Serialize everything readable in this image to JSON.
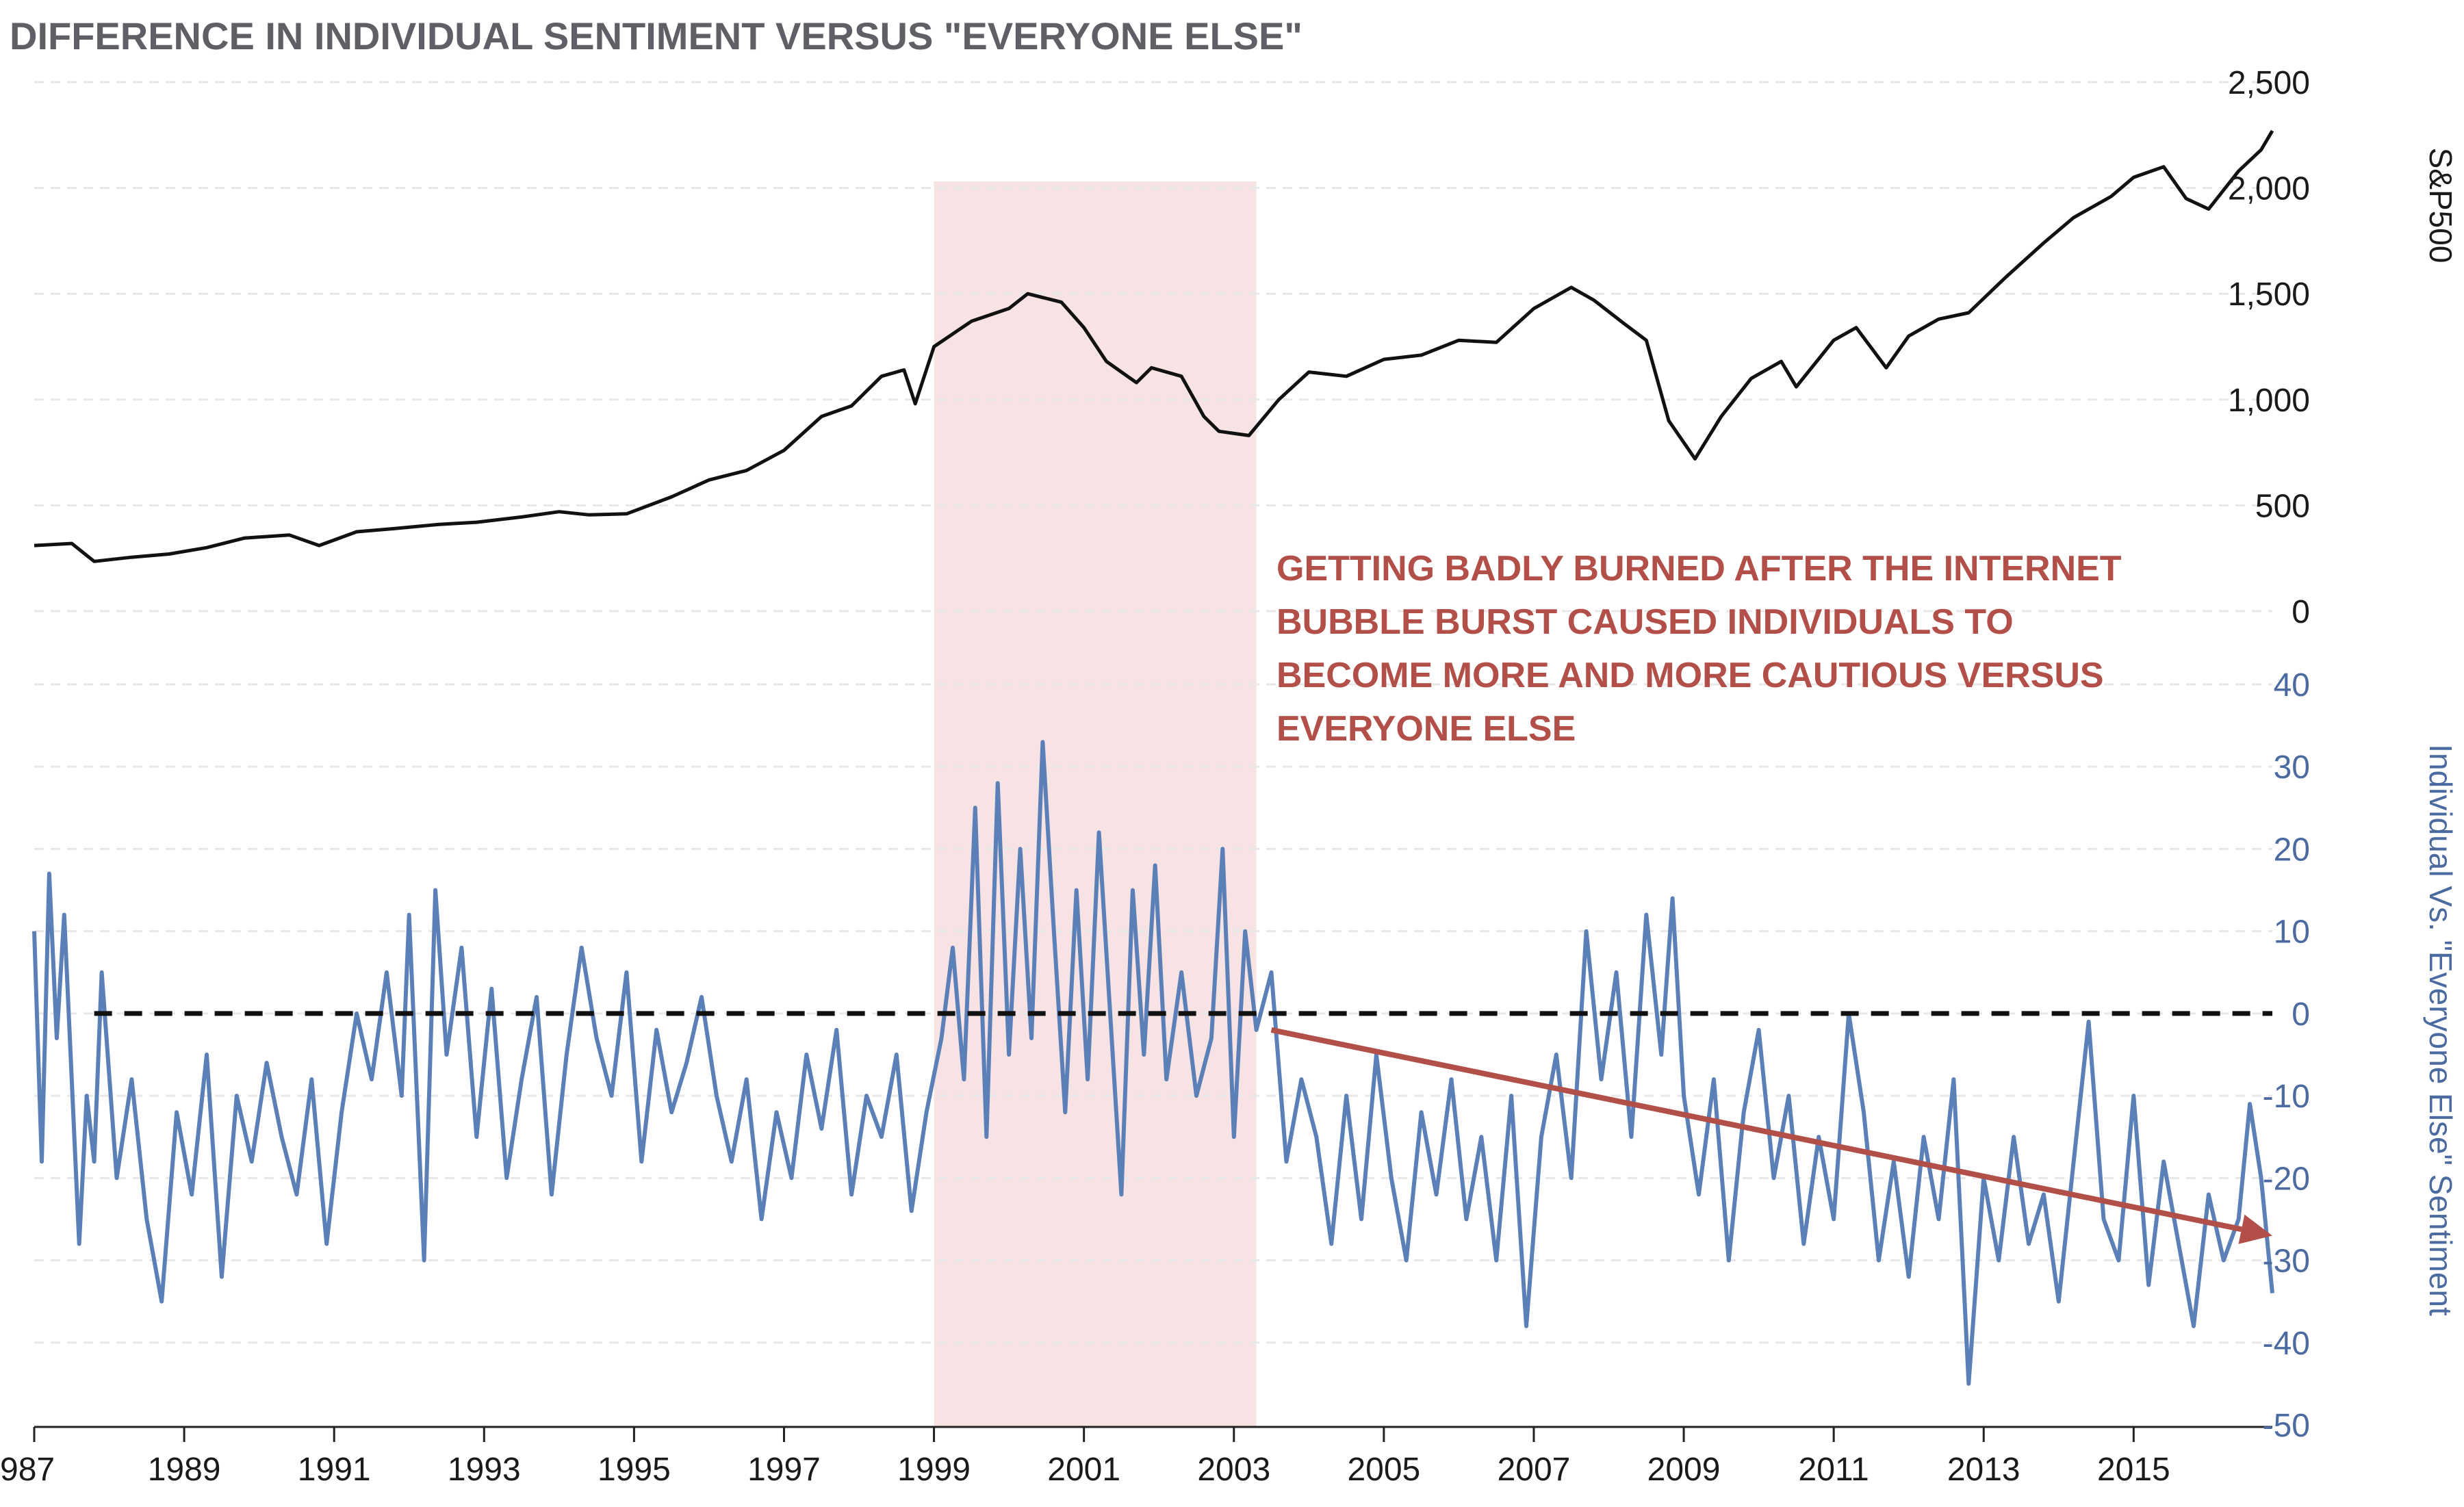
{
  "chart_data": {
    "type": "line",
    "title": "DIFFERENCE IN INDIVIDUAL SENTIMENT VERSUS \"EVERYONE ELSE\"",
    "x_tick_labels": [
      "987",
      "1989",
      "1991",
      "1993",
      "1995",
      "1997",
      "1999",
      "2001",
      "2003",
      "2005",
      "2007",
      "2009",
      "2011",
      "2013",
      "2015"
    ],
    "xlim": [
      1987.0,
      2016.85
    ],
    "grid": "horizontal dashed",
    "top_axis": {
      "label": "S&P500",
      "side": "right",
      "ylim": [
        0,
        2500
      ],
      "tick_labels": [
        "2,500",
        "2,000",
        "1,500",
        "1,000",
        "500",
        "0"
      ]
    },
    "bottom_axis": {
      "label": "Individual Vs. \"Everyone Else\" Sentiment",
      "side": "right",
      "ylim": [
        -50,
        40
      ],
      "tick_labels": [
        "40",
        "30",
        "20",
        "10",
        "0",
        "-10",
        "-20",
        "-30",
        "-40",
        "-50"
      ]
    },
    "highlight_region": {
      "x_start": 1999.0,
      "x_end": 2003.3,
      "color": "#f7e3e3"
    },
    "zero_reference_line": {
      "value": 0,
      "x_start": 1987.8,
      "style": "dashed",
      "color": "#111111"
    },
    "trend_arrow": {
      "x_start": 2003.5,
      "y_start": -2,
      "x_end": 2016.85,
      "y_end": -27,
      "color": "#b24f48"
    },
    "annotation_lines": [
      "GETTING BADLY BURNED AFTER THE INTERNET",
      "BUBBLE BURST CAUSED INDIVIDUALS TO",
      "BECOME MORE AND MORE CAUTIOUS VERSUS",
      "EVERYONE ELSE"
    ],
    "series": [
      {
        "name": "S&P500",
        "axis": "top",
        "color": "#111111",
        "points": [
          [
            1987.0,
            310
          ],
          [
            1987.5,
            320
          ],
          [
            1987.8,
            235
          ],
          [
            1988.3,
            255
          ],
          [
            1988.8,
            270
          ],
          [
            1989.3,
            300
          ],
          [
            1989.8,
            345
          ],
          [
            1990.4,
            360
          ],
          [
            1990.8,
            310
          ],
          [
            1991.3,
            375
          ],
          [
            1991.8,
            390
          ],
          [
            1992.4,
            410
          ],
          [
            1992.9,
            420
          ],
          [
            1993.5,
            445
          ],
          [
            1994.0,
            470
          ],
          [
            1994.4,
            455
          ],
          [
            1994.9,
            460
          ],
          [
            1995.5,
            540
          ],
          [
            1996.0,
            620
          ],
          [
            1996.5,
            665
          ],
          [
            1997.0,
            760
          ],
          [
            1997.5,
            920
          ],
          [
            1997.9,
            970
          ],
          [
            1998.3,
            1110
          ],
          [
            1998.6,
            1140
          ],
          [
            1998.75,
            980
          ],
          [
            1999.0,
            1250
          ],
          [
            1999.5,
            1370
          ],
          [
            2000.0,
            1430
          ],
          [
            2000.25,
            1500
          ],
          [
            2000.7,
            1460
          ],
          [
            2001.0,
            1340
          ],
          [
            2001.3,
            1180
          ],
          [
            2001.7,
            1080
          ],
          [
            2001.9,
            1150
          ],
          [
            2002.3,
            1110
          ],
          [
            2002.6,
            920
          ],
          [
            2002.8,
            850
          ],
          [
            2003.2,
            830
          ],
          [
            2003.6,
            1000
          ],
          [
            2004.0,
            1130
          ],
          [
            2004.5,
            1110
          ],
          [
            2005.0,
            1190
          ],
          [
            2005.5,
            1210
          ],
          [
            2006.0,
            1280
          ],
          [
            2006.5,
            1270
          ],
          [
            2007.0,
            1430
          ],
          [
            2007.5,
            1530
          ],
          [
            2007.8,
            1470
          ],
          [
            2008.2,
            1360
          ],
          [
            2008.5,
            1280
          ],
          [
            2008.8,
            900
          ],
          [
            2009.15,
            720
          ],
          [
            2009.5,
            920
          ],
          [
            2009.9,
            1100
          ],
          [
            2010.3,
            1180
          ],
          [
            2010.5,
            1060
          ],
          [
            2011.0,
            1280
          ],
          [
            2011.3,
            1340
          ],
          [
            2011.7,
            1150
          ],
          [
            2012.0,
            1300
          ],
          [
            2012.4,
            1380
          ],
          [
            2012.8,
            1410
          ],
          [
            2013.3,
            1580
          ],
          [
            2013.8,
            1740
          ],
          [
            2014.2,
            1860
          ],
          [
            2014.7,
            1960
          ],
          [
            2015.0,
            2050
          ],
          [
            2015.4,
            2100
          ],
          [
            2015.7,
            1950
          ],
          [
            2016.0,
            1900
          ],
          [
            2016.4,
            2080
          ],
          [
            2016.7,
            2180
          ],
          [
            2016.85,
            2270
          ]
        ]
      },
      {
        "name": "Individual Vs. \"Everyone Else\" Sentiment",
        "axis": "bottom",
        "color": "#5b80b8",
        "points": [
          [
            1987.0,
            10
          ],
          [
            1987.1,
            -18
          ],
          [
            1987.2,
            17
          ],
          [
            1987.3,
            -3
          ],
          [
            1987.4,
            12
          ],
          [
            1987.5,
            -8
          ],
          [
            1987.6,
            -28
          ],
          [
            1987.7,
            -10
          ],
          [
            1987.8,
            -18
          ],
          [
            1987.9,
            5
          ],
          [
            1988.1,
            -20
          ],
          [
            1988.3,
            -8
          ],
          [
            1988.5,
            -25
          ],
          [
            1988.7,
            -35
          ],
          [
            1988.9,
            -12
          ],
          [
            1989.1,
            -22
          ],
          [
            1989.3,
            -5
          ],
          [
            1989.5,
            -32
          ],
          [
            1989.7,
            -10
          ],
          [
            1989.9,
            -18
          ],
          [
            1990.1,
            -6
          ],
          [
            1990.3,
            -15
          ],
          [
            1990.5,
            -22
          ],
          [
            1990.7,
            -8
          ],
          [
            1990.9,
            -28
          ],
          [
            1991.1,
            -12
          ],
          [
            1991.3,
            0
          ],
          [
            1991.5,
            -8
          ],
          [
            1991.7,
            5
          ],
          [
            1991.9,
            -10
          ],
          [
            1992.0,
            12
          ],
          [
            1992.2,
            -30
          ],
          [
            1992.35,
            15
          ],
          [
            1992.5,
            -5
          ],
          [
            1992.7,
            8
          ],
          [
            1992.9,
            -15
          ],
          [
            1993.1,
            3
          ],
          [
            1993.3,
            -20
          ],
          [
            1993.5,
            -8
          ],
          [
            1993.7,
            2
          ],
          [
            1993.9,
            -22
          ],
          [
            1994.1,
            -5
          ],
          [
            1994.3,
            8
          ],
          [
            1994.5,
            -3
          ],
          [
            1994.7,
            -10
          ],
          [
            1994.9,
            5
          ],
          [
            1995.1,
            -18
          ],
          [
            1995.3,
            -2
          ],
          [
            1995.5,
            -12
          ],
          [
            1995.7,
            -6
          ],
          [
            1995.9,
            2
          ],
          [
            1996.1,
            -10
          ],
          [
            1996.3,
            -18
          ],
          [
            1996.5,
            -8
          ],
          [
            1996.7,
            -25
          ],
          [
            1996.9,
            -12
          ],
          [
            1997.1,
            -20
          ],
          [
            1997.3,
            -5
          ],
          [
            1997.5,
            -14
          ],
          [
            1997.7,
            -2
          ],
          [
            1997.9,
            -22
          ],
          [
            1998.1,
            -10
          ],
          [
            1998.3,
            -15
          ],
          [
            1998.5,
            -5
          ],
          [
            1998.7,
            -24
          ],
          [
            1998.9,
            -12
          ],
          [
            1999.1,
            -3
          ],
          [
            1999.25,
            8
          ],
          [
            1999.4,
            -8
          ],
          [
            1999.55,
            25
          ],
          [
            1999.7,
            -15
          ],
          [
            1999.85,
            28
          ],
          [
            2000.0,
            -5
          ],
          [
            2000.15,
            20
          ],
          [
            2000.3,
            -3
          ],
          [
            2000.45,
            33
          ],
          [
            2000.6,
            10
          ],
          [
            2000.75,
            -12
          ],
          [
            2000.9,
            15
          ],
          [
            2001.05,
            -8
          ],
          [
            2001.2,
            22
          ],
          [
            2001.35,
            0
          ],
          [
            2001.5,
            -22
          ],
          [
            2001.65,
            15
          ],
          [
            2001.8,
            -5
          ],
          [
            2001.95,
            18
          ],
          [
            2002.1,
            -8
          ],
          [
            2002.3,
            5
          ],
          [
            2002.5,
            -10
          ],
          [
            2002.7,
            -3
          ],
          [
            2002.85,
            20
          ],
          [
            2003.0,
            -15
          ],
          [
            2003.15,
            10
          ],
          [
            2003.3,
            -2
          ],
          [
            2003.5,
            5
          ],
          [
            2003.7,
            -18
          ],
          [
            2003.9,
            -8
          ],
          [
            2004.1,
            -15
          ],
          [
            2004.3,
            -28
          ],
          [
            2004.5,
            -10
          ],
          [
            2004.7,
            -25
          ],
          [
            2004.9,
            -5
          ],
          [
            2005.1,
            -20
          ],
          [
            2005.3,
            -30
          ],
          [
            2005.5,
            -12
          ],
          [
            2005.7,
            -22
          ],
          [
            2005.9,
            -8
          ],
          [
            2006.1,
            -25
          ],
          [
            2006.3,
            -15
          ],
          [
            2006.5,
            -30
          ],
          [
            2006.7,
            -10
          ],
          [
            2006.9,
            -38
          ],
          [
            2007.1,
            -15
          ],
          [
            2007.3,
            -5
          ],
          [
            2007.5,
            -20
          ],
          [
            2007.7,
            10
          ],
          [
            2007.9,
            -8
          ],
          [
            2008.1,
            5
          ],
          [
            2008.3,
            -15
          ],
          [
            2008.5,
            12
          ],
          [
            2008.7,
            -5
          ],
          [
            2008.85,
            14
          ],
          [
            2009.0,
            -10
          ],
          [
            2009.2,
            -22
          ],
          [
            2009.4,
            -8
          ],
          [
            2009.6,
            -30
          ],
          [
            2009.8,
            -12
          ],
          [
            2010.0,
            -2
          ],
          [
            2010.2,
            -20
          ],
          [
            2010.4,
            -10
          ],
          [
            2010.6,
            -28
          ],
          [
            2010.8,
            -15
          ],
          [
            2011.0,
            -25
          ],
          [
            2011.2,
            0
          ],
          [
            2011.4,
            -12
          ],
          [
            2011.6,
            -30
          ],
          [
            2011.8,
            -18
          ],
          [
            2012.0,
            -32
          ],
          [
            2012.2,
            -15
          ],
          [
            2012.4,
            -25
          ],
          [
            2012.6,
            -8
          ],
          [
            2012.8,
            -45
          ],
          [
            2013.0,
            -20
          ],
          [
            2013.2,
            -30
          ],
          [
            2013.4,
            -15
          ],
          [
            2013.6,
            -28
          ],
          [
            2013.8,
            -22
          ],
          [
            2014.0,
            -35
          ],
          [
            2014.2,
            -18
          ],
          [
            2014.4,
            -1
          ],
          [
            2014.6,
            -25
          ],
          [
            2014.8,
            -30
          ],
          [
            2015.0,
            -10
          ],
          [
            2015.2,
            -33
          ],
          [
            2015.4,
            -18
          ],
          [
            2015.6,
            -28
          ],
          [
            2015.8,
            -38
          ],
          [
            2016.0,
            -22
          ],
          [
            2016.2,
            -30
          ],
          [
            2016.4,
            -25
          ],
          [
            2016.55,
            -11
          ],
          [
            2016.7,
            -20
          ],
          [
            2016.85,
            -34
          ]
        ]
      }
    ]
  }
}
